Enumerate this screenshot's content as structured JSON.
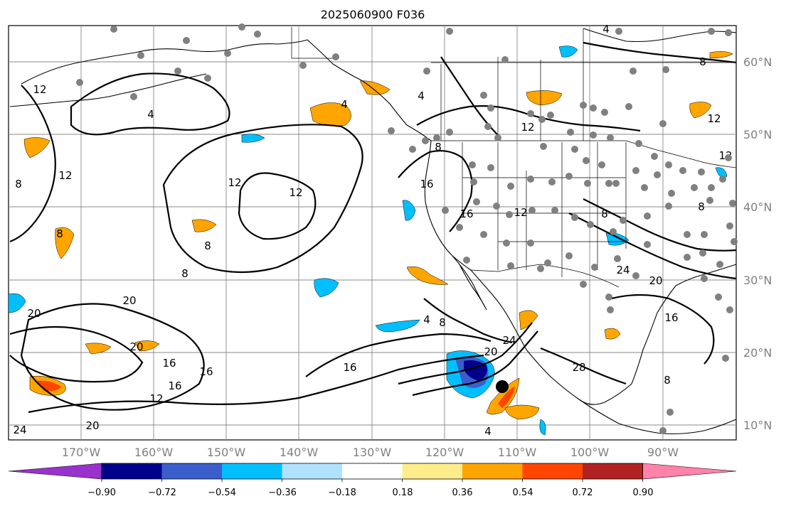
{
  "title": "2025060900 F036",
  "lat_labels": [
    "60°N",
    "50°N",
    "40°N",
    "30°N",
    "20°N",
    "10°N"
  ],
  "lon_labels": [
    "170°W",
    "160°W",
    "150°W",
    "140°W",
    "130°W",
    "120°W",
    "110°W",
    "100°W",
    "90°W"
  ],
  "colorbar": {
    "ticks": [
      "−0.90",
      "−0.72",
      "−0.54",
      "−0.36",
      "−0.18",
      "0.18",
      "0.36",
      "0.54",
      "0.72",
      "0.90"
    ],
    "colors": [
      "#9932cc",
      "#00008b",
      "#3a5fcd",
      "#00bfff",
      "#b0e2ff",
      "#ffffff",
      "#ffec8b",
      "#ffa500",
      "#ff4500",
      "#b22222",
      "#ff82ab"
    ],
    "extend": "both"
  },
  "contour_labels": [
    "4",
    "8",
    "12",
    "16",
    "20",
    "24",
    "28"
  ],
  "colors": {
    "contour": "#000000",
    "grid": "#888888",
    "stations": "#808080",
    "marker": "#000000"
  }
}
